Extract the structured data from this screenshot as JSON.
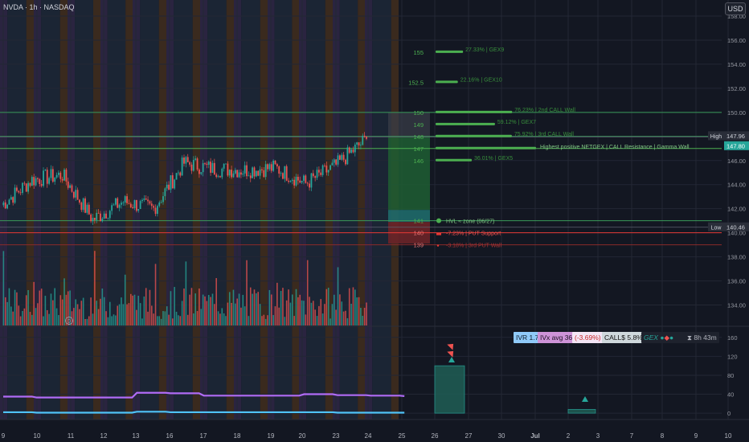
{
  "header": {
    "symbol": "NVDA · 1h · NASDAQ",
    "currency": "USD"
  },
  "price_tags": {
    "high_label": "High",
    "high_value": "147.96",
    "current_value": "147.80",
    "low_label": "Low",
    "low_value": "140.46"
  },
  "indicator_panel": {
    "ivr": "IVR 1.7",
    "ivx": "IVx avg 36",
    "ivx_change": "(-3.69%)",
    "calls": "CALL$ 5.8%",
    "gex_label": "GEX",
    "timer": "8h 43m"
  },
  "chart_data": [
    {
      "type": "candlestick",
      "title": "",
      "y_axis": {
        "ticks": [
          134,
          136,
          138,
          140,
          142,
          144,
          146,
          148,
          150,
          152,
          154,
          156,
          158
        ],
        "ylim": [
          132.3,
          158.8
        ]
      },
      "x_axis": {
        "ticks": [
          "9",
          "10",
          "11",
          "12",
          "13",
          "16",
          "17",
          "18",
          "19",
          "20",
          "23",
          "24",
          "25",
          "26",
          "27",
          "30",
          "Jul",
          "2",
          "3",
          "7",
          "8",
          "9",
          "10"
        ]
      },
      "price_anchors": [
        {
          "date": "06-09",
          "price": 142.3
        },
        {
          "date": "06-10",
          "price": 144.4
        },
        {
          "date": "06-11",
          "price": 144.8
        },
        {
          "date": "06-12",
          "price": 141.1
        },
        {
          "date": "06-13",
          "price": 142.6
        },
        {
          "date": "06-16",
          "price": 142.0
        },
        {
          "date": "06-17",
          "price": 145.8
        },
        {
          "date": "06-18",
          "price": 145.3
        },
        {
          "date": "06-19",
          "price": 145.2
        },
        {
          "date": "06-20",
          "price": 145.4
        },
        {
          "date": "06-23",
          "price": 144.1
        },
        {
          "date": "06-24",
          "price": 145.6
        },
        {
          "date": "06-25",
          "price": 147.8
        }
      ],
      "strike_levels": [
        {
          "strike": "155",
          "price": 155.0,
          "bar_pct": 27.33,
          "text": "27.33% | GEX9"
        },
        {
          "strike": "152.5",
          "price": 152.5,
          "bar_pct": 22.16,
          "text": "22.16% | GEX10"
        },
        {
          "strike": "150",
          "price": 150.0,
          "bar_pct": 76.23,
          "text": "76.23% | 2nd CALL Wall"
        },
        {
          "strike": "149",
          "price": 149.0,
          "bar_pct": 59.12,
          "text": "59.12% | GEX7"
        },
        {
          "strike": "148",
          "price": 148.0,
          "bar_pct": 75.92,
          "text": "75.92% | 3rd CALL Wall"
        },
        {
          "strike": "147",
          "price": 147.0,
          "bar_pct": 100,
          "text": "Highest positive NETGEX | CALL Resistance | Gamma Wall"
        },
        {
          "strike": "146",
          "price": 146.0,
          "bar_pct": 36.01,
          "text": "36.01% | GEX5"
        },
        {
          "strike": "141",
          "price": 141.0,
          "bar_pct": 0,
          "text": "HVL ≈ zone (06/27)"
        },
        {
          "strike": "140",
          "price": 140.0,
          "bar_pct": 0,
          "text": "-7.23% | PUT Support"
        },
        {
          "strike": "139",
          "price": 139.0,
          "bar_pct": 0,
          "text": "-3.18% | 3rd PUT Wall"
        }
      ],
      "volume": {
        "ylim": [
          0,
          100
        ]
      }
    },
    {
      "type": "line",
      "title": "",
      "y_axis": {
        "ticks": [
          0,
          40,
          80,
          120,
          160
        ],
        "ylim": [
          -10,
          180
        ]
      },
      "series": [
        {
          "color": "#b06bf5",
          "values": [
            35,
            33,
            33,
            33,
            43,
            42,
            37,
            37,
            37,
            40,
            38,
            37,
            36
          ]
        },
        {
          "color": "#4fc3f7",
          "values": [
            2,
            1,
            1,
            1,
            3,
            2,
            2,
            2,
            2,
            2,
            1,
            1,
            1
          ]
        }
      ],
      "bars": [
        {
          "date": "06-27",
          "value": 100
        },
        {
          "date": "07-03",
          "value": 8
        }
      ]
    }
  ],
  "colors": {
    "up": "#26a69a",
    "down": "#ef5350",
    "green_level": "#3a9a5a",
    "red_level": "#e53935",
    "purple": "#b06bf5",
    "cyan": "#4fc3f7"
  }
}
